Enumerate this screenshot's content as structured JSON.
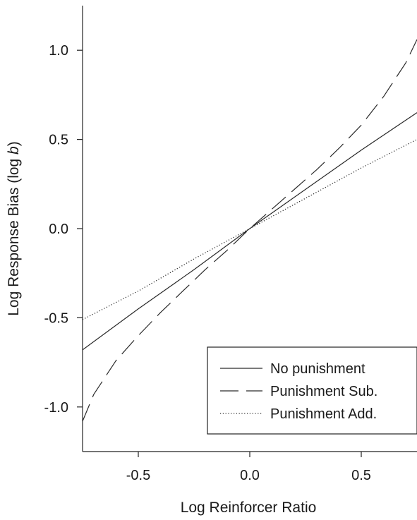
{
  "chart_data": {
    "type": "line",
    "title": "",
    "xlabel": "Log Reinforcer Ratio",
    "ylabel_main": "Log Response Bias (log ",
    "ylabel_italic": "b",
    "ylabel_close": ")",
    "xlim": [
      -0.75,
      0.75
    ],
    "ylim": [
      -1.25,
      1.25
    ],
    "xticks": [
      -0.5,
      0.0,
      0.5
    ],
    "xtick_labels": [
      "-0.5",
      "0.0",
      "0.5"
    ],
    "yticks": [
      -1.0,
      -0.5,
      0.0,
      0.5,
      1.0
    ],
    "ytick_labels": [
      "-1.0",
      "-0.5",
      "0.0",
      "0.5",
      "1.0"
    ],
    "grid": false,
    "legend_position": "bottom-right",
    "series": [
      {
        "name": "No punishment",
        "style": "solid",
        "x": [
          -0.75,
          -0.5,
          -0.25,
          0.0,
          0.25,
          0.5,
          0.75
        ],
        "y": [
          -0.68,
          -0.45,
          -0.23,
          0.0,
          0.22,
          0.44,
          0.65
        ]
      },
      {
        "name": "Punishment Sub.",
        "style": "dashed",
        "x": [
          -0.75,
          -0.7,
          -0.6,
          -0.5,
          -0.4,
          -0.3,
          -0.2,
          -0.1,
          0.0,
          0.1,
          0.2,
          0.3,
          0.4,
          0.5,
          0.6,
          0.7,
          0.75
        ],
        "y": [
          -1.08,
          -0.93,
          -0.74,
          -0.6,
          -0.47,
          -0.35,
          -0.23,
          -0.12,
          0.0,
          0.11,
          0.22,
          0.33,
          0.45,
          0.58,
          0.74,
          0.93,
          1.06
        ]
      },
      {
        "name": "Punishment Add.",
        "style": "dotted",
        "x": [
          -0.75,
          -0.5,
          -0.25,
          0.0,
          0.25,
          0.5,
          0.75
        ],
        "y": [
          -0.51,
          -0.35,
          -0.17,
          0.0,
          0.17,
          0.34,
          0.5
        ]
      }
    ]
  }
}
